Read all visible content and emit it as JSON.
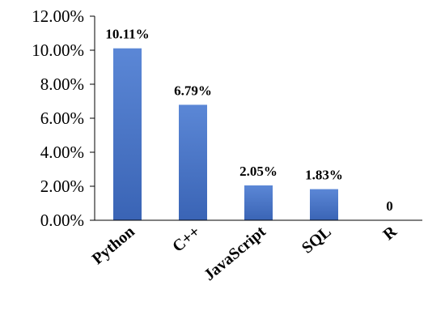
{
  "chart_data": {
    "type": "bar",
    "categories": [
      "Python",
      "C++",
      "JavaScript",
      "SQL",
      "R"
    ],
    "values": [
      10.11,
      6.79,
      2.05,
      1.83,
      0
    ],
    "data_labels": [
      "10.11%",
      "6.79%",
      "2.05%",
      "1.83%",
      "0"
    ],
    "y_ticks": [
      "0.00%",
      "2.00%",
      "4.00%",
      "6.00%",
      "8.00%",
      "10.00%",
      "12.00%"
    ],
    "y_tick_values": [
      0,
      2,
      4,
      6,
      8,
      10,
      12
    ],
    "ylim": [
      0,
      12
    ],
    "grid": false,
    "legend": "none",
    "bar_color": "#4472C4",
    "bar_color_light": "#5b87d6",
    "bar_color_dark": "#3a64b5"
  }
}
